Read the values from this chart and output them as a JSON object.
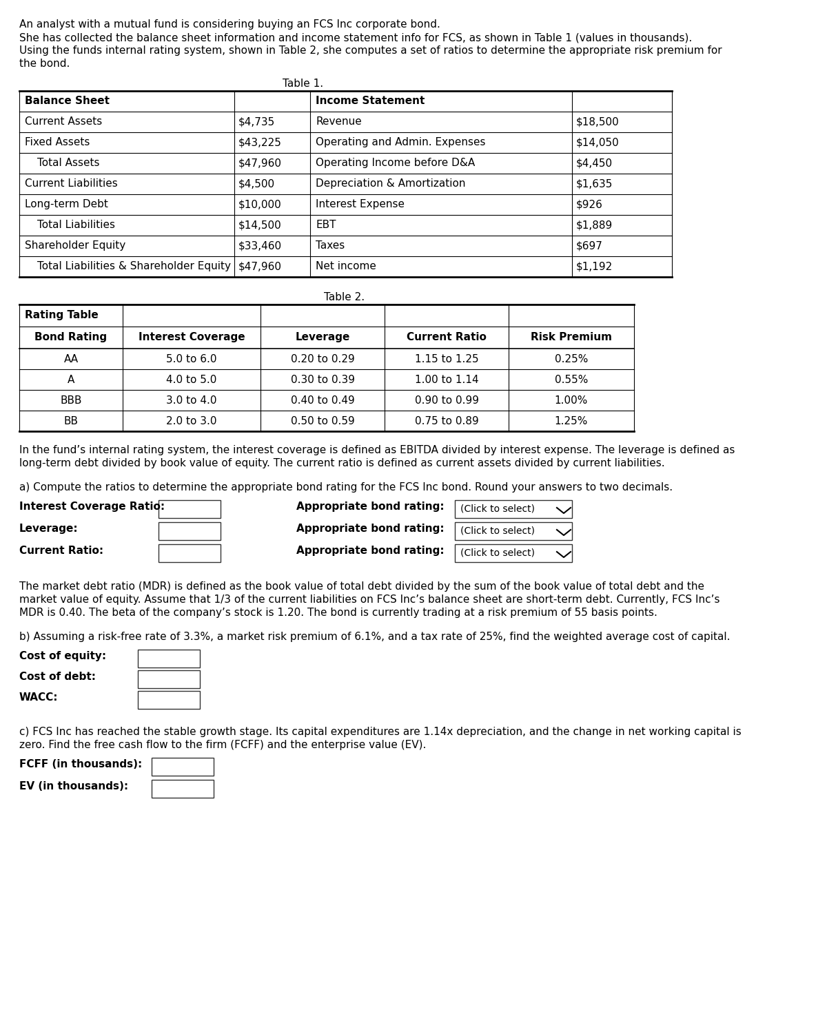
{
  "intro_text": [
    "An analyst with a mutual fund is considering buying an FCS Inc corporate bond.",
    "She has collected the balance sheet information and income statement info for FCS, as shown in Table 1 (values in thousands).",
    "Using the funds internal rating system, shown in Table 2, she computes a set of ratios to determine the appropriate risk premium for",
    "the bond."
  ],
  "table1_title": "Table 1.",
  "table1_rows": [
    [
      "Balance Sheet",
      "",
      "Income Statement",
      "",
      true
    ],
    [
      "Current Assets",
      "$4,735",
      "Revenue",
      "$18,500",
      false
    ],
    [
      "Fixed Assets",
      "$43,225",
      "Operating and Admin. Expenses",
      "$14,050",
      false
    ],
    [
      "  Total Assets",
      "$47,960",
      "Operating Income before D&A",
      "$4,450",
      false
    ],
    [
      "Current Liabilities",
      "$4,500",
      "Depreciation & Amortization",
      "$1,635",
      false
    ],
    [
      "Long-term Debt",
      "$10,000",
      "Interest Expense",
      "$926",
      false
    ],
    [
      "  Total Liabilities",
      "$14,500",
      "EBT",
      "$1,889",
      false
    ],
    [
      "Shareholder Equity",
      "$33,460",
      "Taxes",
      "$697",
      false
    ],
    [
      "  Total Liabilities & Shareholder Equity",
      "$47,960",
      "Net income",
      "$1,192",
      false
    ]
  ],
  "table2_title": "Table 2.",
  "table2_header_row1": [
    "Rating Table",
    "",
    "",
    "",
    ""
  ],
  "table2_header_row2": [
    "Bond Rating",
    "Interest Coverage",
    "Leverage",
    "Current Ratio",
    "Risk Premium"
  ],
  "table2_rows": [
    [
      "AA",
      "5.0 to 6.0",
      "0.20 to 0.29",
      "1.15 to 1.25",
      "0.25%"
    ],
    [
      "A",
      "4.0 to 5.0",
      "0.30 to 0.39",
      "1.00 to 1.14",
      "0.55%"
    ],
    [
      "BBB",
      "3.0 to 4.0",
      "0.40 to 0.49",
      "0.90 to 0.99",
      "1.00%"
    ],
    [
      "BB",
      "2.0 to 3.0",
      "0.50 to 0.59",
      "0.75 to 0.89",
      "1.25%"
    ]
  ],
  "para1_text": [
    "In the fund’s internal rating system, the interest coverage is defined as EBITDA divided by interest expense. The leverage is defined as",
    "long-term debt divided by book value of equity. The current ratio is defined as current assets divided by current liabilities."
  ],
  "part_a_intro": "a) Compute the ratios to determine the appropriate bond rating for the FCS Inc bond. Round your answers to two decimals.",
  "part_a_labels": [
    "Interest Coverage Ratio:",
    "Leverage:",
    "Current Ratio:"
  ],
  "part_a_rating_label": "Appropriate bond rating:",
  "part_a_dropdown": "(Click to select)",
  "para2_text": [
    "The market debt ratio (MDR) is defined as the book value of total debt divided by the sum of the book value of total debt and the",
    "market value of equity. Assume that 1/3 of the current liabilities on FCS Inc’s balance sheet are short-term debt. Currently, FCS Inc’s",
    "MDR is 0.40. The beta of the company’s stock is 1.20. The bond is currently trading at a risk premium of 55 basis points."
  ],
  "part_b_intro": "b) Assuming a risk-free rate of 3.3%, a market risk premium of 6.1%, and a tax rate of 25%, find the weighted average cost of capital.",
  "part_b_labels": [
    "Cost of equity:",
    "Cost of debt:",
    "WACC:"
  ],
  "part_c_text1": "c) FCS Inc has reached the stable growth stage. Its capital expenditures are 1.14x depreciation, and the change in net working capital is",
  "part_c_text2": "zero. Find the free cash flow to the firm (FCFF) and the enterprise value (EV).",
  "part_c_labels": [
    "FCFF (in thousands):",
    "EV (in thousands):"
  ],
  "bg_color": "#ffffff"
}
